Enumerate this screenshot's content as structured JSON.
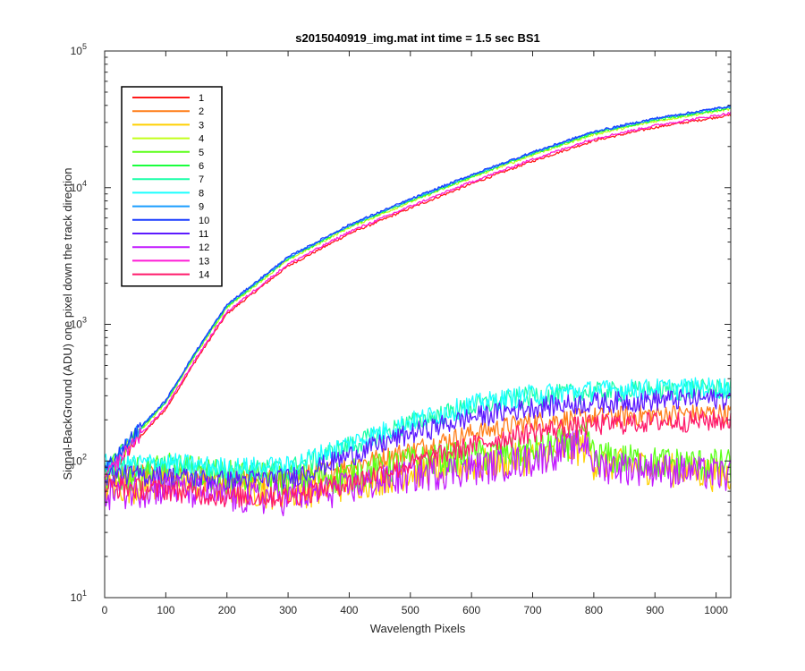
{
  "chart_data": {
    "type": "line",
    "title": "s2015040919_img.mat int time = 1.5 sec   BS1",
    "xlabel": "Wavelength Pixels",
    "ylabel": "Signal-BackGround (ADU) one pixel down the track direction",
    "xlim": [
      0,
      1024
    ],
    "ylim": [
      10,
      100000
    ],
    "yscale": "log",
    "xticks": [
      "0",
      "100",
      "200",
      "300",
      "400",
      "500",
      "600",
      "700",
      "800",
      "900",
      "1000"
    ],
    "yticks": [
      {
        "base": "10",
        "exp": "1"
      },
      {
        "base": "10",
        "exp": "2"
      },
      {
        "base": "10",
        "exp": "3"
      },
      {
        "base": "10",
        "exp": "4"
      },
      {
        "base": "10",
        "exp": "5"
      }
    ],
    "legend_position": "top-left",
    "series": [
      {
        "name": "1",
        "color": "#ff1a1a",
        "profile": "high",
        "scale": 0.92,
        "points": [
          [
            0,
            80
          ],
          [
            50,
            150
          ],
          [
            100,
            260
          ],
          [
            150,
            600
          ],
          [
            200,
            1300
          ],
          [
            300,
            2900
          ],
          [
            400,
            5000
          ],
          [
            500,
            7700
          ],
          [
            600,
            11600
          ],
          [
            700,
            17000
          ],
          [
            800,
            24000
          ],
          [
            900,
            30000
          ],
          [
            1024,
            37000
          ]
        ]
      },
      {
        "name": "2",
        "color": "#ff7f1a",
        "profile": "rise",
        "points": [
          [
            0,
            85
          ],
          [
            100,
            80
          ],
          [
            200,
            72
          ],
          [
            300,
            75
          ],
          [
            400,
            92
          ],
          [
            500,
            120
          ],
          [
            600,
            160
          ],
          [
            700,
            195
          ],
          [
            800,
            210
          ],
          [
            900,
            220
          ],
          [
            1024,
            225
          ]
        ]
      },
      {
        "name": "3",
        "color": "#ffd000",
        "profile": "flat",
        "points": [
          [
            0,
            65
          ],
          [
            100,
            70
          ],
          [
            200,
            65
          ],
          [
            300,
            60
          ],
          [
            400,
            70
          ],
          [
            500,
            85
          ],
          [
            600,
            95
          ],
          [
            700,
            110
          ],
          [
            790,
            130
          ],
          [
            800,
            100
          ],
          [
            900,
            92
          ],
          [
            1024,
            80
          ]
        ]
      },
      {
        "name": "4",
        "color": "#c2ff1a",
        "profile": "high",
        "scale": 1.02,
        "points": [
          [
            0,
            80
          ],
          [
            50,
            150
          ],
          [
            100,
            260
          ],
          [
            150,
            600
          ],
          [
            200,
            1300
          ],
          [
            300,
            2900
          ],
          [
            400,
            5000
          ],
          [
            500,
            7700
          ],
          [
            600,
            11600
          ],
          [
            700,
            17000
          ],
          [
            800,
            24000
          ],
          [
            900,
            30000
          ],
          [
            1024,
            37000
          ]
        ]
      },
      {
        "name": "5",
        "color": "#5cff1a",
        "profile": "flat",
        "points": [
          [
            0,
            75
          ],
          [
            100,
            90
          ],
          [
            200,
            80
          ],
          [
            300,
            75
          ],
          [
            400,
            80
          ],
          [
            500,
            100
          ],
          [
            600,
            110
          ],
          [
            700,
            120
          ],
          [
            790,
            150
          ],
          [
            800,
            110
          ],
          [
            900,
            100
          ],
          [
            1024,
            95
          ]
        ]
      },
      {
        "name": "6",
        "color": "#1aff3d",
        "profile": "high",
        "scale": 1.04,
        "points": [
          [
            0,
            80
          ],
          [
            50,
            150
          ],
          [
            100,
            260
          ],
          [
            150,
            600
          ],
          [
            200,
            1300
          ],
          [
            300,
            2900
          ],
          [
            400,
            5000
          ],
          [
            500,
            7700
          ],
          [
            600,
            11600
          ],
          [
            700,
            17000
          ],
          [
            800,
            24000
          ],
          [
            900,
            30000
          ],
          [
            1024,
            37000
          ]
        ]
      },
      {
        "name": "7",
        "color": "#1affa8",
        "profile": "rise",
        "points": [
          [
            0,
            90
          ],
          [
            100,
            92
          ],
          [
            200,
            85
          ],
          [
            300,
            88
          ],
          [
            400,
            130
          ],
          [
            500,
            190
          ],
          [
            600,
            250
          ],
          [
            700,
            300
          ],
          [
            800,
            320
          ],
          [
            900,
            330
          ],
          [
            1024,
            340
          ]
        ]
      },
      {
        "name": "8",
        "color": "#1affff",
        "profile": "rise",
        "points": [
          [
            0,
            95
          ],
          [
            100,
            98
          ],
          [
            200,
            90
          ],
          [
            300,
            92
          ],
          [
            400,
            135
          ],
          [
            500,
            195
          ],
          [
            600,
            260
          ],
          [
            700,
            310
          ],
          [
            800,
            330
          ],
          [
            900,
            340
          ],
          [
            1024,
            350
          ]
        ]
      },
      {
        "name": "9",
        "color": "#1a9eff",
        "profile": "high",
        "scale": 1.06,
        "points": [
          [
            0,
            80
          ],
          [
            50,
            150
          ],
          [
            100,
            260
          ],
          [
            150,
            600
          ],
          [
            200,
            1300
          ],
          [
            300,
            2900
          ],
          [
            400,
            5000
          ],
          [
            500,
            7700
          ],
          [
            600,
            11600
          ],
          [
            700,
            17000
          ],
          [
            800,
            24000
          ],
          [
            900,
            30000
          ],
          [
            1024,
            37000
          ]
        ]
      },
      {
        "name": "10",
        "color": "#1a3dff",
        "profile": "high",
        "scale": 1.07,
        "points": [
          [
            0,
            80
          ],
          [
            50,
            150
          ],
          [
            100,
            260
          ],
          [
            150,
            600
          ],
          [
            200,
            1300
          ],
          [
            300,
            2900
          ],
          [
            400,
            5000
          ],
          [
            500,
            7700
          ],
          [
            600,
            11600
          ],
          [
            700,
            17000
          ],
          [
            800,
            24000
          ],
          [
            900,
            30000
          ],
          [
            1024,
            37000
          ]
        ]
      },
      {
        "name": "11",
        "color": "#5c1aff",
        "profile": "rise",
        "points": [
          [
            0,
            80
          ],
          [
            100,
            78
          ],
          [
            200,
            72
          ],
          [
            300,
            75
          ],
          [
            400,
            110
          ],
          [
            500,
            160
          ],
          [
            600,
            210
          ],
          [
            700,
            250
          ],
          [
            800,
            270
          ],
          [
            900,
            280
          ],
          [
            1024,
            290
          ]
        ]
      },
      {
        "name": "12",
        "color": "#c21aff",
        "profile": "flat",
        "points": [
          [
            0,
            60
          ],
          [
            100,
            65
          ],
          [
            200,
            55
          ],
          [
            300,
            55
          ],
          [
            400,
            65
          ],
          [
            500,
            80
          ],
          [
            600,
            90
          ],
          [
            700,
            105
          ],
          [
            790,
            140
          ],
          [
            800,
            95
          ],
          [
            900,
            90
          ],
          [
            1024,
            80
          ]
        ]
      },
      {
        "name": "13",
        "color": "#ff1ad6",
        "profile": "high",
        "scale": 0.95,
        "points": [
          [
            0,
            80
          ],
          [
            50,
            150
          ],
          [
            100,
            260
          ],
          [
            150,
            600
          ],
          [
            200,
            1300
          ],
          [
            300,
            2900
          ],
          [
            400,
            5000
          ],
          [
            500,
            7700
          ],
          [
            600,
            11600
          ],
          [
            700,
            17000
          ],
          [
            800,
            24000
          ],
          [
            900,
            30000
          ],
          [
            1024,
            37000
          ]
        ]
      },
      {
        "name": "14",
        "color": "#ff1a6b",
        "profile": "rise",
        "points": [
          [
            0,
            65
          ],
          [
            100,
            62
          ],
          [
            200,
            55
          ],
          [
            300,
            55
          ],
          [
            400,
            70
          ],
          [
            500,
            95
          ],
          [
            600,
            130
          ],
          [
            700,
            165
          ],
          [
            800,
            185
          ],
          [
            900,
            195
          ],
          [
            1024,
            200
          ]
        ]
      }
    ]
  }
}
